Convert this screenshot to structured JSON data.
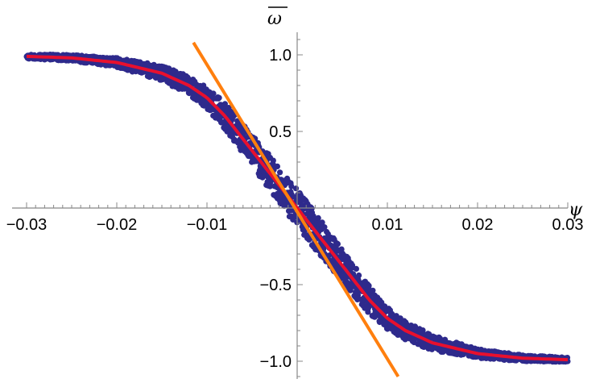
{
  "chart_data": {
    "type": "scatter",
    "title": "",
    "xlabel": "ψ",
    "ylabel": "ω",
    "ylabel_overline": true,
    "xlim": [
      -0.03,
      0.03
    ],
    "ylim": [
      -1.0,
      1.0
    ],
    "x_ticks": [
      {
        "value": -0.03,
        "label": "−0.03"
      },
      {
        "value": -0.02,
        "label": "−0.02"
      },
      {
        "value": -0.01,
        "label": "−0.01"
      },
      {
        "value": 0.01,
        "label": "0.01"
      },
      {
        "value": 0.02,
        "label": "0.02"
      },
      {
        "value": 0.03,
        "label": "0.03"
      }
    ],
    "y_ticks": [
      {
        "value": 1.0,
        "label": "1.0"
      },
      {
        "value": 0.5,
        "label": "0.5"
      },
      {
        "value": -0.5,
        "label": "−0.5"
      },
      {
        "value": -1.0,
        "label": "−1.0"
      }
    ],
    "grid": false,
    "series": [
      {
        "kind": "scatter",
        "color": "#2e2a8c",
        "description_only": true,
        "x": [
          -0.03,
          -0.025,
          -0.02,
          -0.015,
          -0.012,
          -0.01,
          -0.008,
          -0.006,
          -0.004,
          -0.002,
          0,
          0.002,
          0.004,
          0.006,
          0.008,
          0.01,
          0.012,
          0.015,
          0.02,
          0.025,
          0.03
        ],
        "y": [
          0.99,
          0.98,
          0.95,
          0.88,
          0.8,
          0.72,
          0.6,
          0.45,
          0.3,
          0.15,
          0.0,
          -0.15,
          -0.3,
          -0.45,
          -0.6,
          -0.72,
          -0.8,
          -0.88,
          -0.95,
          -0.98,
          -0.99
        ],
        "spread": [
          0.015,
          0.02,
          0.03,
          0.05,
          0.06,
          0.07,
          0.09,
          0.1,
          0.11,
          0.12,
          0.12,
          0.12,
          0.11,
          0.1,
          0.09,
          0.07,
          0.06,
          0.05,
          0.03,
          0.02,
          0.015
        ]
      },
      {
        "kind": "line",
        "color": "#e8102e",
        "x": [
          -0.03,
          -0.025,
          -0.02,
          -0.015,
          -0.012,
          -0.01,
          -0.008,
          -0.006,
          -0.004,
          -0.002,
          0,
          0.002,
          0.004,
          0.006,
          0.008,
          0.01,
          0.012,
          0.015,
          0.02,
          0.025,
          0.03
        ],
        "y": [
          0.99,
          0.98,
          0.95,
          0.88,
          0.8,
          0.72,
          0.6,
          0.45,
          0.3,
          0.15,
          0.0,
          -0.15,
          -0.3,
          -0.45,
          -0.6,
          -0.72,
          -0.8,
          -0.88,
          -0.95,
          -0.98,
          -0.99
        ]
      },
      {
        "kind": "line",
        "color": "#ff7f0e",
        "x": [
          -0.0115,
          0.0112
        ],
        "y": [
          1.08,
          -1.1
        ]
      }
    ],
    "colors": {
      "points": "#2e2a8c",
      "fit_curve": "#e8102e",
      "tangent_line": "#ff7f0e",
      "axes": "#888888"
    }
  }
}
